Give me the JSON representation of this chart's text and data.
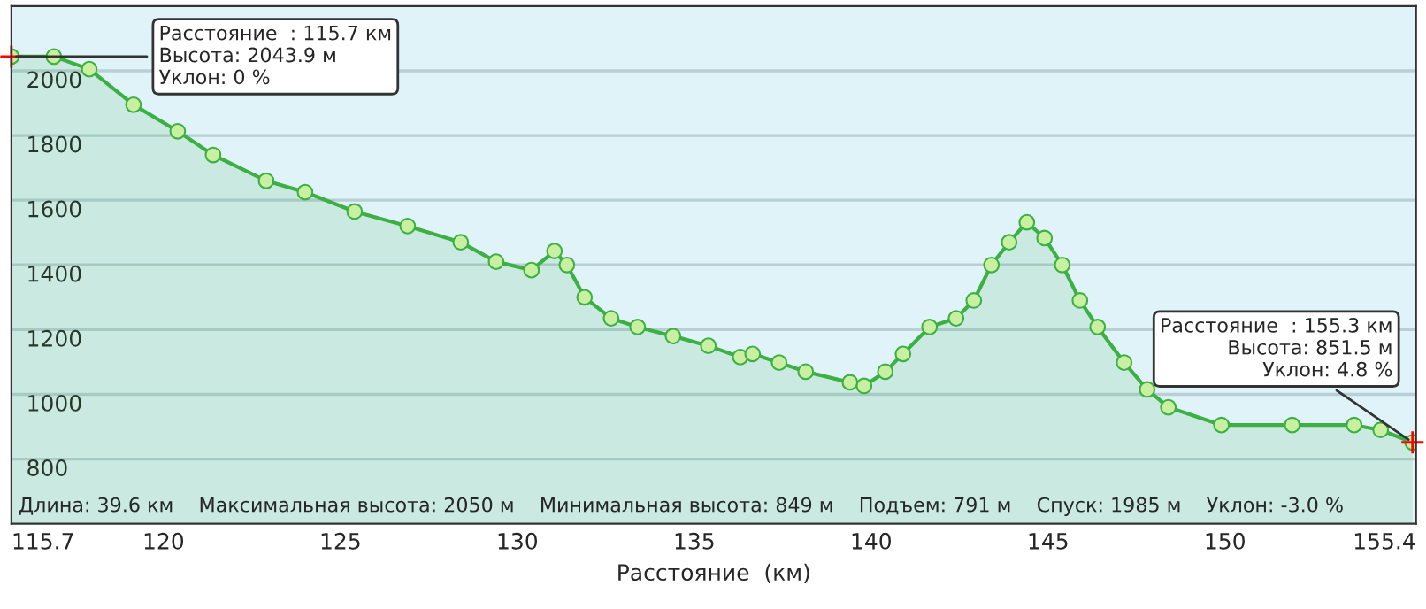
{
  "chart_data": {
    "type": "area",
    "xlabel": "Расстояние  (км)",
    "marker": "circle",
    "grid": "y",
    "legend": false,
    "x": [
      115.7,
      116.9,
      117.9,
      119.15,
      120.4,
      121.4,
      122.9,
      124.0,
      125.4,
      126.9,
      128.4,
      129.4,
      130.4,
      131.05,
      131.4,
      131.9,
      132.65,
      133.4,
      134.4,
      135.4,
      136.3,
      136.65,
      137.4,
      138.15,
      139.4,
      139.8,
      140.4,
      140.9,
      141.65,
      142.4,
      142.9,
      143.4,
      143.9,
      144.4,
      144.9,
      145.4,
      145.9,
      146.4,
      147.15,
      147.8,
      148.4,
      149.9,
      151.9,
      153.65,
      154.4,
      155.3
    ],
    "series": [
      {
        "color": "#3cb043",
        "values": [
          2043.9,
          2044,
          2005,
          1895,
          1813,
          1740,
          1660,
          1625,
          1565,
          1520,
          1470,
          1410,
          1384,
          1443,
          1400,
          1300,
          1235,
          1208,
          1180,
          1150,
          1115,
          1125,
          1098,
          1070,
          1037,
          1026,
          1070,
          1125,
          1208,
          1235,
          1290,
          1400,
          1470,
          1532,
          1483,
          1400,
          1290,
          1208,
          1098,
          1015,
          960,
          905,
          905,
          905,
          890,
          851.5
        ]
      }
    ],
    "xlim": [
      115.7,
      155.4
    ],
    "xticks": [
      115.7,
      120,
      125,
      130,
      135,
      140,
      145,
      150,
      155.4
    ],
    "ylim": [
      600,
      2200
    ],
    "yticks": [
      800,
      1000,
      1200,
      1400,
      1600,
      1800,
      2000
    ],
    "annotations": [
      {
        "text": "Расстояние  : 115.7 км\nВысота: 2043.9 м\nУклон: 0 %",
        "x": 115.7,
        "y": 2043.9
      },
      {
        "text": "Расстояние  : 155.3 км\nВысота: 851.5 м\nУклон: 4.8 %",
        "x": 155.3,
        "y": 851.5
      },
      "Длина: 39.6 км    Максимальная высота: 2050 м    Минимальная высота: 849 м    Подъем: 791 м    Спуск: 1985 м    Уклон: -3.0 %"
    ]
  }
}
